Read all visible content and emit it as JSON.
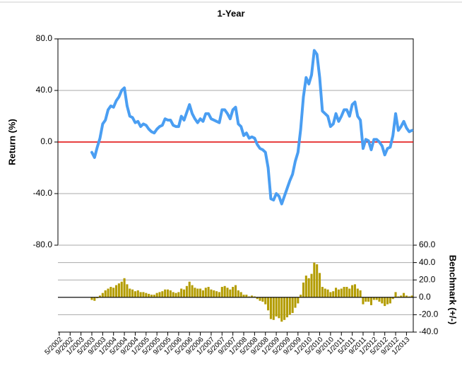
{
  "chart_data": [
    {
      "type": "line",
      "title": "1-Year",
      "y_label": "Return (%)",
      "color": "#4a9ef2",
      "zero_line_color": "#e00000",
      "ylim": [
        -80,
        80
      ],
      "yticks": [
        {
          "value": 80,
          "label": "80.0"
        },
        {
          "value": 40,
          "label": "40.0"
        },
        {
          "value": 0,
          "label": "0.0"
        },
        {
          "value": -40,
          "label": "-40.0"
        },
        {
          "value": -80,
          "label": "-80.0"
        }
      ],
      "values": [
        null,
        null,
        null,
        null,
        null,
        null,
        null,
        null,
        null,
        null,
        null,
        null,
        -8,
        -12,
        -4,
        3,
        14,
        17,
        25,
        28,
        27,
        32,
        35,
        40,
        42,
        28,
        20,
        19,
        15,
        16,
        12,
        14,
        13,
        10,
        8,
        7,
        10,
        12,
        13,
        18,
        17,
        17,
        13,
        12,
        12,
        20,
        17,
        23,
        29,
        22,
        18,
        15,
        18,
        16,
        22,
        22,
        18,
        17,
        16,
        15,
        25,
        25,
        22,
        18,
        25,
        27,
        14,
        12,
        5,
        7,
        3,
        4,
        3,
        -2,
        -5,
        -6,
        -8,
        -20,
        -44,
        -45,
        -40,
        -42,
        -48,
        -42,
        -36,
        -30,
        -25,
        -15,
        -8,
        10,
        35,
        50,
        45,
        52,
        71,
        68,
        50,
        24,
        22,
        20,
        12,
        14,
        22,
        16,
        20,
        25,
        25,
        20,
        29,
        31,
        20,
        17,
        -5,
        2,
        1,
        -6,
        2,
        2,
        0,
        -3,
        -10,
        -5,
        -4,
        5,
        22,
        9,
        12,
        16,
        11,
        8,
        9
      ]
    },
    {
      "type": "bar",
      "y_label": "Benchmark (+/-)",
      "color": "#b39c00",
      "ylim": [
        -40,
        60
      ],
      "yticks": [
        {
          "value": 60,
          "label": "60.0"
        },
        {
          "value": 40,
          "label": "40.0"
        },
        {
          "value": 20,
          "label": "20.0"
        },
        {
          "value": 0,
          "label": "0.0"
        },
        {
          "value": -20,
          "label": "-20.0"
        },
        {
          "value": -40,
          "label": "-40.0"
        }
      ],
      "categories": [
        "5/2002",
        null,
        null,
        null,
        "9/2002",
        null,
        null,
        null,
        "1/2003",
        null,
        null,
        null,
        "5/2003",
        null,
        null,
        null,
        "9/2003",
        null,
        null,
        null,
        "1/2004",
        null,
        null,
        null,
        "5/2004",
        null,
        null,
        null,
        "9/2004",
        null,
        null,
        null,
        "1/2005",
        null,
        null,
        null,
        "5/2005",
        null,
        null,
        null,
        "9/2005",
        null,
        null,
        null,
        "1/2006",
        null,
        null,
        null,
        "5/2006",
        null,
        null,
        null,
        "9/2006",
        null,
        null,
        null,
        "1/2007",
        null,
        null,
        null,
        "5/2007",
        null,
        null,
        null,
        "9/2007",
        null,
        null,
        null,
        "1/2008",
        null,
        null,
        null,
        "5/2008",
        null,
        null,
        null,
        "9/2008",
        null,
        null,
        null,
        "1/2009",
        null,
        null,
        null,
        "5/2009",
        null,
        null,
        null,
        "9/2009",
        null,
        null,
        null,
        "1/2010",
        null,
        null,
        null,
        "5/2010",
        null,
        null,
        null,
        "9/2010",
        null,
        null,
        null,
        "1/2011",
        null,
        null,
        null,
        "5/2011",
        null,
        null,
        null,
        "9/2011",
        null,
        null,
        null,
        "1/2012",
        null,
        null,
        null,
        "5/2012",
        null,
        null,
        null,
        "9/2012",
        null,
        null,
        null,
        "1/2013",
        null,
        null
      ],
      "values": [
        null,
        null,
        null,
        null,
        null,
        null,
        null,
        null,
        null,
        null,
        null,
        null,
        -3,
        -4,
        -1,
        2,
        5,
        8,
        10,
        12,
        11,
        14,
        16,
        18,
        22,
        15,
        10,
        9,
        7,
        8,
        6,
        6,
        5,
        4,
        3,
        3,
        5,
        6,
        7,
        9,
        9,
        8,
        6,
        5,
        6,
        10,
        9,
        13,
        18,
        14,
        11,
        10,
        10,
        8,
        11,
        12,
        9,
        8,
        7,
        6,
        12,
        13,
        11,
        9,
        12,
        14,
        8,
        6,
        3,
        3,
        1,
        2,
        1,
        -2,
        -4,
        -5,
        -8,
        -15,
        -25,
        -26,
        -22,
        -24,
        -28,
        -26,
        -23,
        -20,
        -18,
        -12,
        -7,
        3,
        17,
        25,
        22,
        27,
        40,
        38,
        28,
        12,
        10,
        9,
        6,
        7,
        11,
        9,
        10,
        12,
        12,
        10,
        14,
        15,
        10,
        8,
        -8,
        -5,
        -5,
        -9,
        -3,
        -3,
        -5,
        -7,
        -10,
        -8,
        -7,
        -2,
        6,
        1,
        2,
        5,
        2,
        1,
        2
      ]
    }
  ]
}
